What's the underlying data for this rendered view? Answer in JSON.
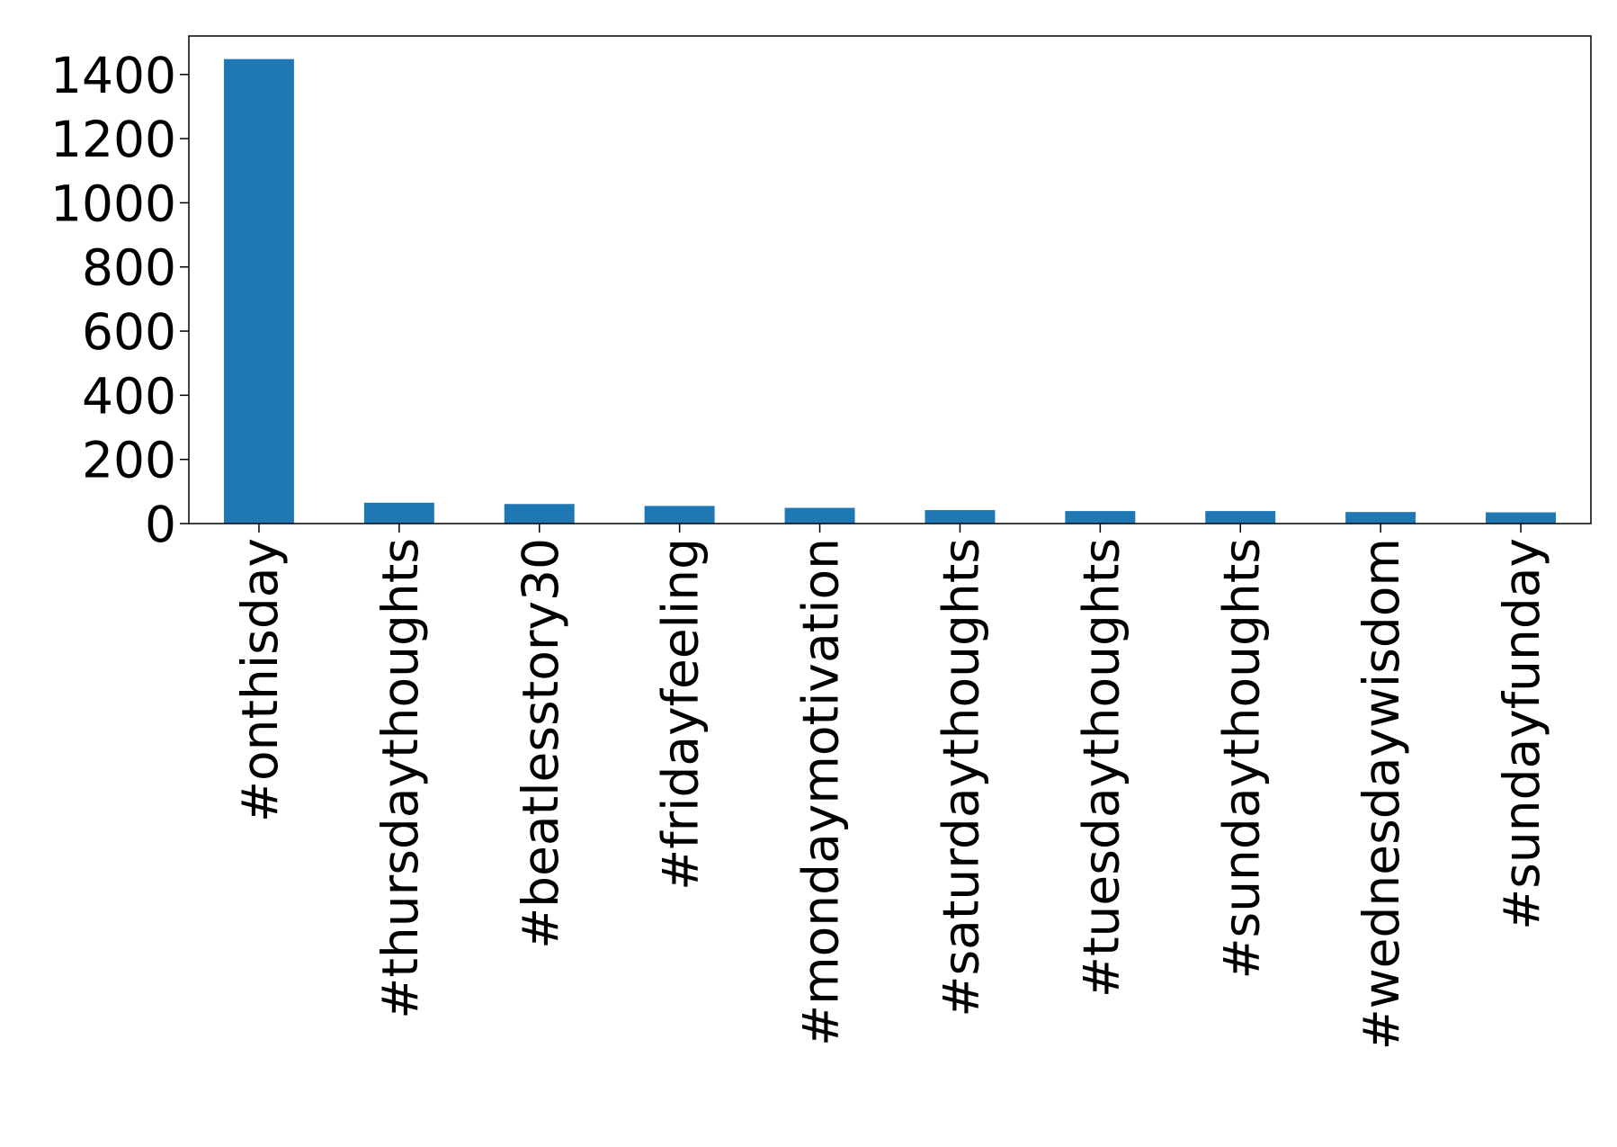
{
  "chart_data": {
    "type": "bar",
    "categories": [
      "#onthisday",
      "#thursdaythoughts",
      "#beatlesstory30",
      "#fridayfeeling",
      "#mondaymotivation",
      "#saturdaythoughts",
      "#tuesdaythoughts",
      "#sundaythoughts",
      "#wednesdaywisdom",
      "#sundayfunday"
    ],
    "values": [
      1448,
      65,
      61,
      55,
      49,
      42,
      39,
      39,
      36,
      35
    ],
    "color": "#1f77b4",
    "ylim": [
      0,
      1520
    ],
    "yticks": [
      0,
      200,
      400,
      600,
      800,
      1000,
      1200,
      1400
    ],
    "grid": false
  }
}
